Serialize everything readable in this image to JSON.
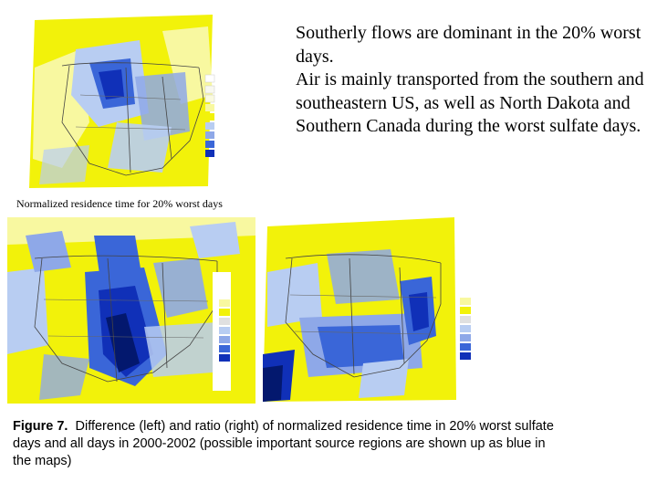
{
  "side_text": {
    "line1": "Southerly flows are dominant in the 20% worst days.",
    "line2": "Air is mainly transported from the southern and southeastern US, as well as North Dakota and Southern Canada during the worst sulfate days."
  },
  "top_map_caption": "Normalized residence time for 20% worst days",
  "figure_caption": {
    "label": "Figure 7.",
    "text": "Difference (left) and ratio (right) of normalized residence time in 20% worst sulfate days and all days in 2000-2002 (possible important source regions are shown up as blue in the maps)"
  },
  "colors": {
    "yellow": "#f2f20a",
    "light_yellow": "#f8f8a0",
    "pale_blue": "#b8cdf2",
    "light_blue": "#8ea8e8",
    "mid_blue": "#3a66d8",
    "dark_blue": "#1030b8",
    "navy": "#03186e"
  }
}
